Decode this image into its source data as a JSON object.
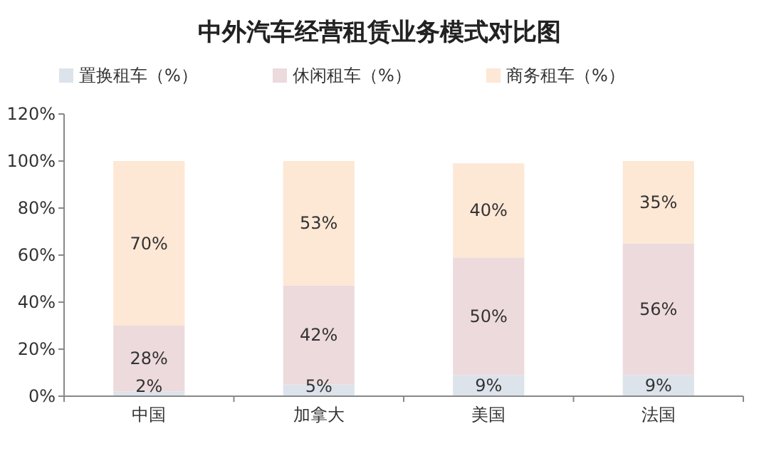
{
  "chart_data": {
    "type": "bar",
    "title": "中外汽车经营租赁业务模式对比图",
    "categories": [
      "中国",
      "加拿大",
      "美国",
      "法国"
    ],
    "stacked": true,
    "legend": "top",
    "grid": false,
    "series": [
      {
        "name": "置换租车（%）",
        "color": "#dde3eb",
        "values": [
          2,
          5,
          9,
          9
        ],
        "value_labels": [
          "2%",
          "5%",
          "9%",
          "9%"
        ]
      },
      {
        "name": "休闲租车（%）",
        "color": "#eddadd",
        "values": [
          28,
          42,
          50,
          56
        ],
        "value_labels": [
          "28%",
          "42%",
          "50%",
          "56%"
        ]
      },
      {
        "name": "商务租车（%）",
        "color": "#fde7d5",
        "values": [
          70,
          53,
          40,
          35
        ],
        "value_labels": [
          "70%",
          "53%",
          "40%",
          "35%"
        ]
      }
    ],
    "ylim": [
      0,
      120
    ],
    "yticks": [
      {
        "value": 0,
        "label": "0%"
      },
      {
        "value": 20,
        "label": "20%"
      },
      {
        "value": 40,
        "label": "40%"
      },
      {
        "value": 60,
        "label": "60%"
      },
      {
        "value": 80,
        "label": "80%"
      },
      {
        "value": 100,
        "label": "100%"
      },
      {
        "value": 120,
        "label": "120%"
      }
    ]
  }
}
